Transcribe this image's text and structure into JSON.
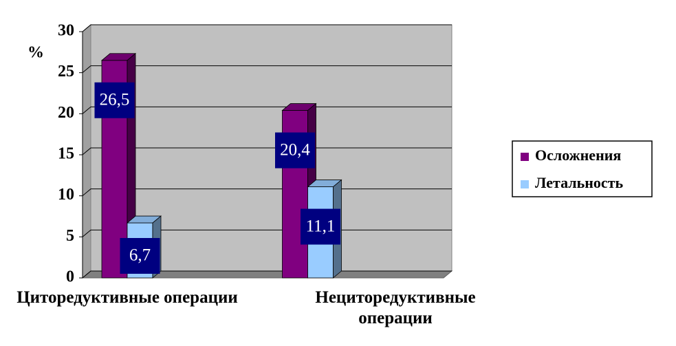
{
  "chart_data": {
    "type": "bar3d",
    "y_label": "%",
    "categories": [
      "Циторедуктивные операции",
      "Нециторедуктивные операции"
    ],
    "series": [
      {
        "name": "Осложнения",
        "color": "#800080",
        "values": [
          26.5,
          20.4
        ],
        "value_labels": [
          "26,5",
          "20,4"
        ]
      },
      {
        "name": "Летальность",
        "color": "#99ccff",
        "values": [
          6.7,
          11.1
        ],
        "value_labels": [
          "6,7",
          "11,1"
        ]
      }
    ],
    "ylim": [
      0,
      30
    ],
    "yticks": [
      0,
      5,
      10,
      15,
      20,
      25,
      30
    ],
    "grid": true,
    "legend": "right"
  }
}
